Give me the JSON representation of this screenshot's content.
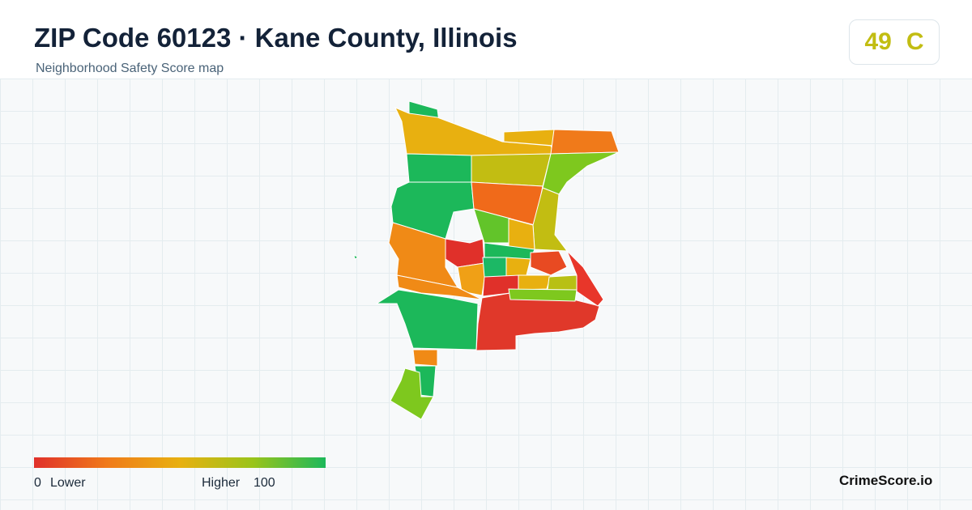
{
  "header": {
    "title": "ZIP Code 60123 · Kane County, Illinois",
    "subtitle": "Neighborhood Safety Score map"
  },
  "score": {
    "value": 49,
    "grade": "C",
    "color": "#c2bd12"
  },
  "legend": {
    "min": 0,
    "min_label": "Lower",
    "max_label": "Higher",
    "max": 100,
    "colors": [
      "#e0302a",
      "#f07a1a",
      "#e8b010",
      "#9ac41a",
      "#1cb85a"
    ]
  },
  "brand": "CrimeScore.io"
}
